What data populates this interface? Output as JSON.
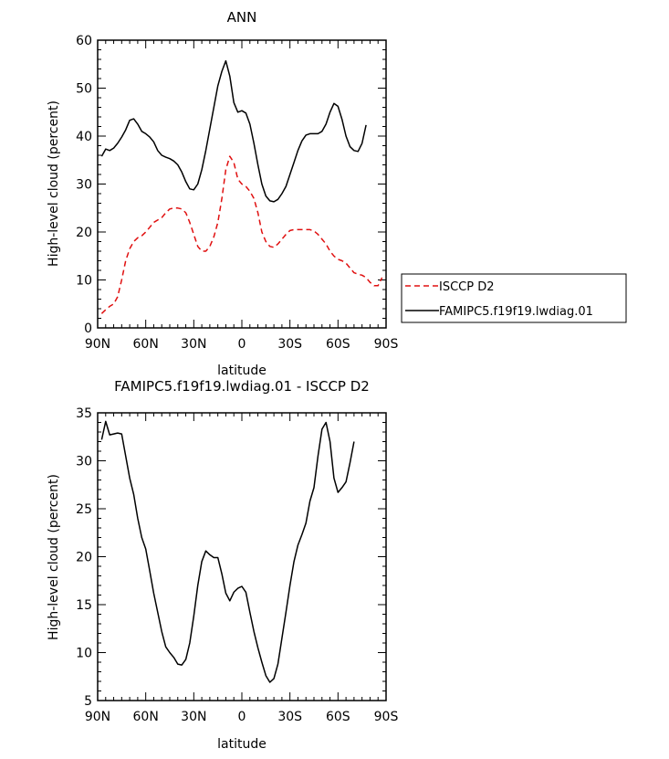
{
  "charts": [
    {
      "title": "ANN",
      "xlabel": "latitude",
      "ylabel": "High-level cloud (percent)",
      "x_tick_labels": [
        "90N",
        "60N",
        "30N",
        "0",
        "30S",
        "60S",
        "90S"
      ],
      "y_tick_labels": [
        "0",
        "10",
        "20",
        "30",
        "40",
        "50",
        "60"
      ],
      "legend": {
        "entries": [
          {
            "label": "ISCCP D2",
            "color": "#e01010",
            "dash": "dashed"
          },
          {
            "label": "FAMIPC5.f19f19.lwdiag.01",
            "color": "#000000",
            "dash": "solid"
          }
        ]
      }
    },
    {
      "title": "FAMIPC5.f19f19.lwdiag.01 - ISCCP D2",
      "xlabel": "latitude",
      "ylabel": "High-level cloud (percent)",
      "x_tick_labels": [
        "90N",
        "60N",
        "30N",
        "0",
        "30S",
        "60S",
        "90S"
      ],
      "y_tick_labels": [
        "5",
        "10",
        "15",
        "20",
        "25",
        "30",
        "35"
      ]
    }
  ],
  "chart_data": [
    {
      "type": "line",
      "x_axis": "latitude (90N to 90S)",
      "xlim": [
        90,
        -90
      ],
      "ylim": [
        0,
        60
      ],
      "x_ticks": [
        90,
        60,
        30,
        0,
        -30,
        -60,
        -90
      ],
      "y_ticks": [
        0,
        10,
        20,
        30,
        40,
        50,
        60
      ],
      "series": [
        {
          "name": "ISCCP D2",
          "color": "#e01010",
          "style": "dashed",
          "points": [
            [
              87.5,
              3
            ],
            [
              85,
              3.8
            ],
            [
              82.5,
              4.5
            ],
            [
              80,
              5
            ],
            [
              77.5,
              6.5
            ],
            [
              75,
              10
            ],
            [
              72.5,
              14
            ],
            [
              70,
              16.5
            ],
            [
              67.5,
              18
            ],
            [
              65,
              18.8
            ],
            [
              62.5,
              19.2
            ],
            [
              60,
              20
            ],
            [
              57.5,
              21
            ],
            [
              55,
              22
            ],
            [
              52.5,
              22.5
            ],
            [
              50,
              23
            ],
            [
              47.5,
              24
            ],
            [
              45,
              24.8
            ],
            [
              42.5,
              25
            ],
            [
              40,
              25
            ],
            [
              37.5,
              24.8
            ],
            [
              35,
              24
            ],
            [
              32.5,
              22
            ],
            [
              30,
              19.5
            ],
            [
              27.5,
              17
            ],
            [
              25,
              16
            ],
            [
              22.5,
              16
            ],
            [
              20,
              17
            ],
            [
              17.5,
              19
            ],
            [
              15,
              22
            ],
            [
              12.5,
              27
            ],
            [
              10,
              33
            ],
            [
              7.5,
              35.8
            ],
            [
              5,
              34.5
            ],
            [
              2.5,
              31
            ],
            [
              0,
              30
            ],
            [
              -2.5,
              29.5
            ],
            [
              -5,
              28.5
            ],
            [
              -7.5,
              27
            ],
            [
              -10,
              24
            ],
            [
              -12.5,
              20
            ],
            [
              -15,
              18
            ],
            [
              -17.5,
              17
            ],
            [
              -20,
              16.8
            ],
            [
              -22.5,
              17.5
            ],
            [
              -25,
              18.5
            ],
            [
              -27.5,
              19.5
            ],
            [
              -30,
              20.3
            ],
            [
              -32.5,
              20.5
            ],
            [
              -35,
              20.5
            ],
            [
              -37.5,
              20.5
            ],
            [
              -40,
              20.5
            ],
            [
              -42.5,
              20.5
            ],
            [
              -45,
              20.2
            ],
            [
              -47.5,
              19.5
            ],
            [
              -50,
              18.5
            ],
            [
              -52.5,
              17.5
            ],
            [
              -55,
              16
            ],
            [
              -57.5,
              15
            ],
            [
              -60,
              14.3
            ],
            [
              -62.5,
              14
            ],
            [
              -65,
              13.5
            ],
            [
              -67.5,
              12.5
            ],
            [
              -70,
              11.5
            ],
            [
              -72.5,
              11.2
            ],
            [
              -75,
              11
            ],
            [
              -77.5,
              10.5
            ],
            [
              -80,
              9.5
            ],
            [
              -82.5,
              8.8
            ],
            [
              -85,
              8.8
            ],
            [
              -87.5,
              10.5
            ]
          ]
        },
        {
          "name": "FAMIPC5.f19f19.lwdiag.01",
          "color": "#000000",
          "style": "solid",
          "points": [
            [
              87.5,
              35.8
            ],
            [
              85,
              37.3
            ],
            [
              82.5,
              37
            ],
            [
              80,
              37.5
            ],
            [
              77.5,
              38.5
            ],
            [
              75,
              39.8
            ],
            [
              72.5,
              41.3
            ],
            [
              70,
              43.3
            ],
            [
              67.5,
              43.6
            ],
            [
              65,
              42.5
            ],
            [
              62.5,
              41
            ],
            [
              60,
              40.5
            ],
            [
              57.5,
              39.8
            ],
            [
              55,
              38.8
            ],
            [
              52.5,
              37
            ],
            [
              50,
              36
            ],
            [
              47.5,
              35.6
            ],
            [
              45,
              35.3
            ],
            [
              42.5,
              34.8
            ],
            [
              40,
              34
            ],
            [
              37.5,
              32.5
            ],
            [
              35,
              30.5
            ],
            [
              32.5,
              29
            ],
            [
              30,
              28.8
            ],
            [
              27.5,
              30
            ],
            [
              25,
              33
            ],
            [
              22.5,
              37
            ],
            [
              20,
              41.5
            ],
            [
              17.5,
              46
            ],
            [
              15,
              50.5
            ],
            [
              12.5,
              53.5
            ],
            [
              10,
              55.7
            ],
            [
              7.5,
              52.5
            ],
            [
              5,
              47
            ],
            [
              2.5,
              45
            ],
            [
              0,
              45.3
            ],
            [
              -2.5,
              44.8
            ],
            [
              -5,
              42.5
            ],
            [
              -7.5,
              38.5
            ],
            [
              -10,
              34
            ],
            [
              -12.5,
              30
            ],
            [
              -15,
              27.5
            ],
            [
              -17.5,
              26.5
            ],
            [
              -20,
              26.3
            ],
            [
              -22.5,
              26.8
            ],
            [
              -25,
              28
            ],
            [
              -27.5,
              29.5
            ],
            [
              -30,
              32
            ],
            [
              -32.5,
              34.5
            ],
            [
              -35,
              37
            ],
            [
              -37.5,
              39
            ],
            [
              -40,
              40.2
            ],
            [
              -42.5,
              40.5
            ],
            [
              -45,
              40.5
            ],
            [
              -47.5,
              40.5
            ],
            [
              -50,
              41
            ],
            [
              -52.5,
              42.5
            ],
            [
              -55,
              45
            ],
            [
              -57.5,
              46.8
            ],
            [
              -60,
              46.2
            ],
            [
              -62.5,
              43.5
            ],
            [
              -65,
              40
            ],
            [
              -67.5,
              37.8
            ],
            [
              -70,
              37
            ],
            [
              -72.5,
              36.8
            ],
            [
              -75,
              38.5
            ],
            [
              -77.5,
              42.3
            ]
          ]
        }
      ]
    },
    {
      "type": "line",
      "x_axis": "latitude (90N to 90S)",
      "xlim": [
        90,
        -90
      ],
      "ylim": [
        5,
        35
      ],
      "x_ticks": [
        90,
        60,
        30,
        0,
        -30,
        -60,
        -90
      ],
      "y_ticks": [
        5,
        10,
        15,
        20,
        25,
        30,
        35
      ],
      "series": [
        {
          "name": "FAMIPC5.f19f19.lwdiag.01 - ISCCP D2",
          "color": "#000000",
          "style": "solid",
          "points": [
            [
              87.5,
              32.2
            ],
            [
              85,
              34.1
            ],
            [
              82.5,
              32.7
            ],
            [
              80,
              32.8
            ],
            [
              77.5,
              32.9
            ],
            [
              75,
              32.8
            ],
            [
              72.5,
              30.5
            ],
            [
              70,
              28.2
            ],
            [
              67.5,
              26.5
            ],
            [
              65,
              24
            ],
            [
              62.5,
              22
            ],
            [
              60,
              20.8
            ],
            [
              57.5,
              18.5
            ],
            [
              55,
              16.2
            ],
            [
              52.5,
              14.2
            ],
            [
              50,
              12.2
            ],
            [
              47.5,
              10.6
            ],
            [
              45,
              10
            ],
            [
              42.5,
              9.5
            ],
            [
              40,
              8.8
            ],
            [
              37.5,
              8.7
            ],
            [
              35,
              9.3
            ],
            [
              32.5,
              11
            ],
            [
              30,
              13.8
            ],
            [
              27.5,
              17
            ],
            [
              25,
              19.5
            ],
            [
              22.5,
              20.6
            ],
            [
              20,
              20.2
            ],
            [
              17.5,
              19.9
            ],
            [
              15,
              19.9
            ],
            [
              12.5,
              18.2
            ],
            [
              10,
              16.2
            ],
            [
              7.5,
              15.4
            ],
            [
              5,
              16.3
            ],
            [
              2.5,
              16.7
            ],
            [
              0,
              16.9
            ],
            [
              -2.5,
              16.3
            ],
            [
              -5,
              14.2
            ],
            [
              -7.5,
              12.2
            ],
            [
              -10,
              10.5
            ],
            [
              -12.5,
              9
            ],
            [
              -15,
              7.6
            ],
            [
              -17.5,
              6.9
            ],
            [
              -20,
              7.3
            ],
            [
              -22.5,
              8.8
            ],
            [
              -25,
              11.5
            ],
            [
              -27.5,
              14.2
            ],
            [
              -30,
              17
            ],
            [
              -32.5,
              19.5
            ],
            [
              -35,
              21.2
            ],
            [
              -37.5,
              22.3
            ],
            [
              -40,
              23.5
            ],
            [
              -42.5,
              25.8
            ],
            [
              -45,
              27.2
            ],
            [
              -47.5,
              30.5
            ],
            [
              -50,
              33.3
            ],
            [
              -52.5,
              34
            ],
            [
              -55,
              32
            ],
            [
              -57.5,
              28.2
            ],
            [
              -60,
              26.7
            ],
            [
              -62.5,
              27.2
            ],
            [
              -65,
              27.8
            ],
            [
              -67.5,
              29.8
            ],
            [
              -70,
              32
            ]
          ]
        }
      ]
    }
  ]
}
